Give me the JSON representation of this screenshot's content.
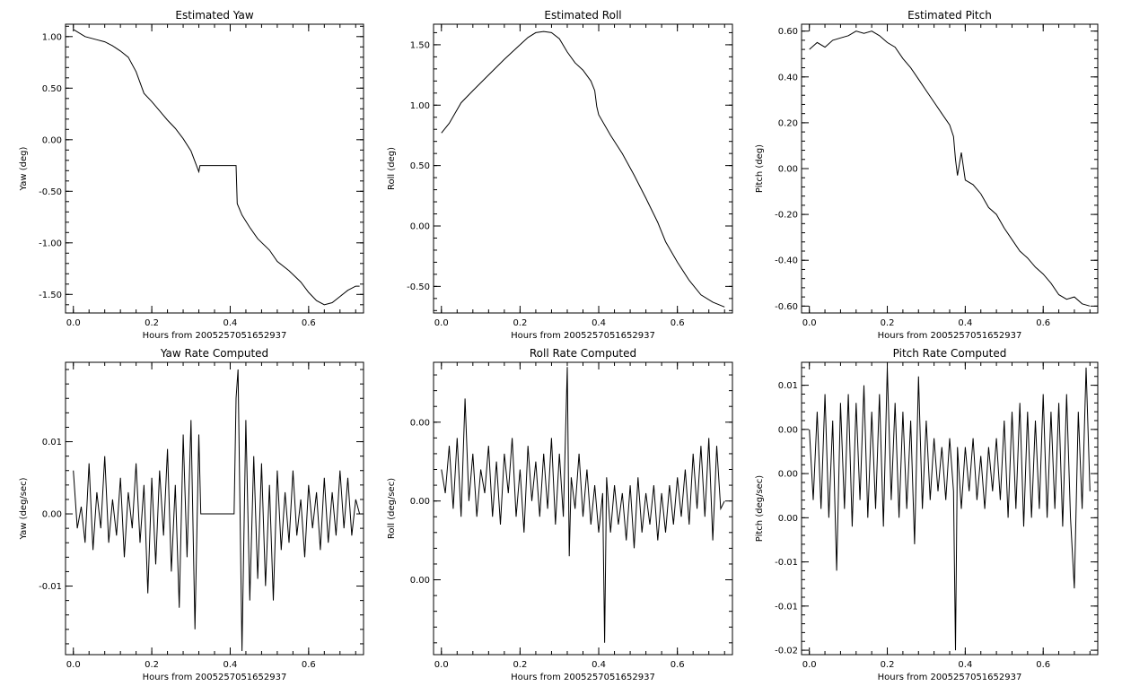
{
  "chart_data": [
    {
      "type": "line",
      "title": "Estimated Yaw",
      "xlabel": "Hours from 2005257051652937",
      "ylabel": "Yaw (deg)",
      "xlim": [
        -0.02,
        0.74
      ],
      "ylim": [
        -1.68,
        1.12
      ],
      "xticks": [
        "0.0",
        "0.2",
        "0.4",
        "0.6"
      ],
      "xtick_values": [
        0.0,
        0.2,
        0.4,
        0.6
      ],
      "yticks": [
        "1.00",
        "0.50",
        "0.00",
        "-0.50",
        "-1.00",
        "-1.50"
      ],
      "ytick_values": [
        1.0,
        0.5,
        0.0,
        -0.5,
        -1.0,
        -1.5
      ],
      "grid": false,
      "series": [
        {
          "x": [
            0.0,
            0.03,
            0.06,
            0.08,
            0.1,
            0.12,
            0.14,
            0.16,
            0.18,
            0.2,
            0.22,
            0.24,
            0.26,
            0.28,
            0.3,
            0.32,
            0.323,
            0.33,
            0.415,
            0.418,
            0.43,
            0.45,
            0.47,
            0.5,
            0.52,
            0.55,
            0.58,
            0.6,
            0.62,
            0.64,
            0.66,
            0.68,
            0.7,
            0.72,
            0.73
          ],
          "y": [
            1.07,
            1.0,
            0.97,
            0.95,
            0.91,
            0.86,
            0.8,
            0.66,
            0.45,
            0.37,
            0.28,
            0.19,
            0.11,
            0.01,
            -0.11,
            -0.31,
            -0.25,
            -0.25,
            -0.25,
            -0.62,
            -0.73,
            -0.85,
            -0.96,
            -1.07,
            -1.18,
            -1.27,
            -1.38,
            -1.48,
            -1.56,
            -1.6,
            -1.58,
            -1.52,
            -1.46,
            -1.42,
            -1.42
          ]
        }
      ]
    },
    {
      "type": "line",
      "title": "Estimated Roll",
      "xlabel": "Hours from 2005257051652937",
      "ylabel": "Roll (deg)",
      "xlim": [
        -0.02,
        0.74
      ],
      "ylim": [
        -0.72,
        1.67
      ],
      "xticks": [
        "0.0",
        "0.2",
        "0.4",
        "0.6"
      ],
      "xtick_values": [
        0.0,
        0.2,
        0.4,
        0.6
      ],
      "yticks": [
        "1.50",
        "1.00",
        "0.50",
        "0.00",
        "-0.50"
      ],
      "ytick_values": [
        1.5,
        1.0,
        0.5,
        0.0,
        -0.5
      ],
      "grid": false,
      "series": [
        {
          "x": [
            0.0,
            0.02,
            0.05,
            0.08,
            0.12,
            0.16,
            0.2,
            0.22,
            0.24,
            0.26,
            0.28,
            0.3,
            0.32,
            0.34,
            0.36,
            0.38,
            0.39,
            0.395,
            0.4,
            0.43,
            0.46,
            0.49,
            0.52,
            0.55,
            0.57,
            0.6,
            0.63,
            0.66,
            0.69,
            0.72
          ],
          "y": [
            0.77,
            0.85,
            1.02,
            1.12,
            1.25,
            1.38,
            1.5,
            1.56,
            1.6,
            1.61,
            1.6,
            1.55,
            1.44,
            1.35,
            1.29,
            1.2,
            1.12,
            0.99,
            0.92,
            0.75,
            0.6,
            0.42,
            0.23,
            0.03,
            -0.13,
            -0.3,
            -0.45,
            -0.57,
            -0.63,
            -0.67
          ]
        }
      ]
    },
    {
      "type": "line",
      "title": "Estimated Pitch",
      "xlabel": "Hours from 2005257051652937",
      "ylabel": "Pitch (deg)",
      "xlim": [
        -0.02,
        0.74
      ],
      "ylim": [
        -0.63,
        0.63
      ],
      "xticks": [
        "0.0",
        "0.2",
        "0.4",
        "0.6"
      ],
      "xtick_values": [
        0.0,
        0.2,
        0.4,
        0.6
      ],
      "yticks": [
        "0.60",
        "0.40",
        "0.20",
        "0.00",
        "-0.20",
        "-0.40",
        "-0.60"
      ],
      "ytick_values": [
        0.6,
        0.4,
        0.2,
        0.0,
        -0.2,
        -0.4,
        -0.6
      ],
      "grid": false,
      "series": [
        {
          "x": [
            0.0,
            0.02,
            0.04,
            0.06,
            0.08,
            0.1,
            0.12,
            0.14,
            0.16,
            0.18,
            0.2,
            0.22,
            0.24,
            0.26,
            0.28,
            0.3,
            0.32,
            0.34,
            0.36,
            0.37,
            0.375,
            0.38,
            0.39,
            0.4,
            0.42,
            0.44,
            0.46,
            0.48,
            0.5,
            0.52,
            0.54,
            0.56,
            0.58,
            0.6,
            0.62,
            0.64,
            0.66,
            0.68,
            0.7,
            0.72
          ],
          "y": [
            0.52,
            0.55,
            0.53,
            0.56,
            0.57,
            0.58,
            0.6,
            0.59,
            0.6,
            0.58,
            0.55,
            0.53,
            0.48,
            0.44,
            0.39,
            0.34,
            0.29,
            0.24,
            0.19,
            0.14,
            0.04,
            -0.03,
            0.07,
            -0.05,
            -0.07,
            -0.11,
            -0.17,
            -0.2,
            -0.26,
            -0.31,
            -0.36,
            -0.39,
            -0.43,
            -0.46,
            -0.5,
            -0.55,
            -0.57,
            -0.56,
            -0.59,
            -0.6
          ]
        }
      ]
    },
    {
      "type": "line",
      "title": "Yaw Rate Computed",
      "xlabel": "Hours from 2005257051652937",
      "ylabel": "Yaw (deg/sec)",
      "xlim": [
        -0.02,
        0.74
      ],
      "ylim": [
        -0.0195,
        0.021
      ],
      "xticks": [
        "0.0",
        "0.2",
        "0.4",
        "0.6"
      ],
      "xtick_values": [
        0.0,
        0.2,
        0.4,
        0.6
      ],
      "yticks": [
        "0.01",
        "0.00",
        "-0.01"
      ],
      "ytick_values": [
        0.01,
        0.0,
        -0.01
      ],
      "grid": false,
      "series": [
        {
          "x": [
            0.0,
            0.01,
            0.02,
            0.03,
            0.04,
            0.05,
            0.06,
            0.07,
            0.08,
            0.09,
            0.1,
            0.11,
            0.12,
            0.13,
            0.14,
            0.15,
            0.16,
            0.17,
            0.18,
            0.19,
            0.2,
            0.21,
            0.22,
            0.23,
            0.24,
            0.25,
            0.26,
            0.27,
            0.28,
            0.29,
            0.3,
            0.31,
            0.32,
            0.325,
            0.41,
            0.415,
            0.42,
            0.43,
            0.44,
            0.45,
            0.46,
            0.47,
            0.48,
            0.49,
            0.5,
            0.51,
            0.52,
            0.53,
            0.54,
            0.55,
            0.56,
            0.57,
            0.58,
            0.59,
            0.6,
            0.61,
            0.62,
            0.63,
            0.64,
            0.65,
            0.66,
            0.67,
            0.68,
            0.69,
            0.7,
            0.71,
            0.72,
            0.73
          ],
          "y": [
            0.006,
            -0.002,
            0.001,
            -0.004,
            0.007,
            -0.005,
            0.003,
            -0.002,
            0.008,
            -0.004,
            0.002,
            -0.003,
            0.005,
            -0.006,
            0.003,
            -0.002,
            0.007,
            -0.004,
            0.004,
            -0.011,
            0.005,
            -0.007,
            0.006,
            -0.003,
            0.009,
            -0.008,
            0.004,
            -0.013,
            0.011,
            -0.006,
            0.013,
            -0.016,
            0.011,
            0.0,
            0.0,
            0.016,
            0.02,
            -0.019,
            0.013,
            -0.012,
            0.008,
            -0.009,
            0.007,
            -0.01,
            0.004,
            -0.012,
            0.006,
            -0.005,
            0.003,
            -0.004,
            0.006,
            -0.003,
            0.002,
            -0.006,
            0.004,
            -0.002,
            0.003,
            -0.005,
            0.005,
            -0.004,
            0.003,
            -0.003,
            0.006,
            -0.002,
            0.005,
            -0.003,
            0.002,
            0.0
          ]
        }
      ]
    },
    {
      "type": "line",
      "title": "Roll Rate Computed",
      "xlabel": "Hours from 2005257051652937",
      "ylabel": "Roll (deg/sec)",
      "xlim": [
        -0.02,
        0.74
      ],
      "ylim": [
        -0.0195,
        0.0176
      ],
      "xticks": [
        "0.0",
        "0.2",
        "0.4",
        "0.6"
      ],
      "xtick_values": [
        0.0,
        0.2,
        0.4,
        0.6
      ],
      "yticks": [
        "0.00",
        "0.00",
        "0.00"
      ],
      "ytick_values": [
        0.01,
        0.0,
        -0.01
      ],
      "grid": false,
      "series": [
        {
          "x": [
            0.0,
            0.01,
            0.02,
            0.03,
            0.04,
            0.05,
            0.06,
            0.07,
            0.08,
            0.09,
            0.1,
            0.11,
            0.12,
            0.13,
            0.14,
            0.15,
            0.16,
            0.17,
            0.18,
            0.19,
            0.2,
            0.21,
            0.22,
            0.23,
            0.24,
            0.25,
            0.26,
            0.27,
            0.28,
            0.29,
            0.3,
            0.31,
            0.32,
            0.325,
            0.33,
            0.34,
            0.35,
            0.36,
            0.37,
            0.38,
            0.39,
            0.4,
            0.41,
            0.415,
            0.42,
            0.43,
            0.44,
            0.45,
            0.46,
            0.47,
            0.48,
            0.49,
            0.5,
            0.51,
            0.52,
            0.53,
            0.54,
            0.55,
            0.56,
            0.57,
            0.58,
            0.59,
            0.6,
            0.61,
            0.62,
            0.63,
            0.64,
            0.65,
            0.66,
            0.67,
            0.68,
            0.69,
            0.7,
            0.71,
            0.72
          ],
          "y": [
            0.004,
            0.001,
            0.007,
            -0.001,
            0.008,
            -0.002,
            0.013,
            0.0,
            0.006,
            -0.002,
            0.004,
            0.001,
            0.007,
            -0.002,
            0.005,
            -0.003,
            0.006,
            0.001,
            0.008,
            -0.002,
            0.004,
            -0.004,
            0.007,
            0.0,
            0.005,
            -0.002,
            0.006,
            -0.001,
            0.008,
            -0.003,
            0.006,
            -0.002,
            0.017,
            -0.007,
            0.003,
            -0.001,
            0.006,
            -0.002,
            0.004,
            -0.003,
            0.002,
            -0.004,
            0.001,
            -0.018,
            0.003,
            -0.004,
            0.002,
            -0.003,
            0.001,
            -0.005,
            0.002,
            -0.006,
            0.003,
            -0.004,
            0.001,
            -0.003,
            0.002,
            -0.005,
            0.001,
            -0.004,
            0.002,
            -0.003,
            0.003,
            -0.002,
            0.004,
            -0.003,
            0.006,
            -0.001,
            0.007,
            -0.002,
            0.008,
            -0.005,
            0.007,
            -0.001,
            0.0
          ]
        }
      ]
    },
    {
      "type": "line",
      "title": "Pitch Rate Computed",
      "xlabel": "Hours from 2005257051652937",
      "ylabel": "Pitch (deg/sec)",
      "xlim": [
        -0.02,
        0.74
      ],
      "ylim": [
        -0.0205,
        0.0126
      ],
      "xticks": [
        "0.0",
        "0.2",
        "0.4",
        "0.6"
      ],
      "xtick_values": [
        0.0,
        0.2,
        0.4,
        0.6
      ],
      "yticks": [
        "0.01",
        "0.00",
        "0.00",
        "0.00",
        "-0.01",
        "-0.01",
        "-0.02"
      ],
      "ytick_values": [
        0.01,
        0.005,
        0.0,
        -0.005,
        -0.01,
        -0.015,
        -0.02
      ],
      "grid": false,
      "series": [
        {
          "x": [
            0.0,
            0.01,
            0.02,
            0.03,
            0.04,
            0.05,
            0.06,
            0.07,
            0.08,
            0.09,
            0.1,
            0.11,
            0.12,
            0.13,
            0.14,
            0.15,
            0.16,
            0.17,
            0.18,
            0.19,
            0.2,
            0.21,
            0.22,
            0.23,
            0.24,
            0.25,
            0.26,
            0.27,
            0.28,
            0.29,
            0.3,
            0.31,
            0.32,
            0.33,
            0.34,
            0.35,
            0.36,
            0.37,
            0.375,
            0.38,
            0.39,
            0.4,
            0.41,
            0.42,
            0.43,
            0.44,
            0.45,
            0.46,
            0.47,
            0.48,
            0.49,
            0.5,
            0.51,
            0.52,
            0.53,
            0.54,
            0.55,
            0.56,
            0.57,
            0.58,
            0.59,
            0.6,
            0.61,
            0.62,
            0.63,
            0.64,
            0.65,
            0.66,
            0.67,
            0.68,
            0.69,
            0.7,
            0.71,
            0.72
          ],
          "y": [
            0.005,
            -0.003,
            0.007,
            -0.004,
            0.009,
            -0.005,
            0.006,
            -0.011,
            0.008,
            -0.004,
            0.009,
            -0.006,
            0.008,
            -0.003,
            0.01,
            -0.005,
            0.007,
            -0.004,
            0.009,
            -0.006,
            0.012,
            -0.003,
            0.008,
            -0.005,
            0.007,
            -0.004,
            0.006,
            -0.008,
            0.011,
            -0.004,
            0.006,
            -0.003,
            0.004,
            -0.002,
            0.003,
            -0.003,
            0.004,
            -0.002,
            -0.02,
            0.003,
            -0.004,
            0.003,
            -0.002,
            0.004,
            -0.003,
            0.002,
            -0.004,
            0.003,
            -0.002,
            0.004,
            -0.003,
            0.006,
            -0.005,
            0.007,
            -0.004,
            0.008,
            -0.006,
            0.007,
            -0.005,
            0.006,
            -0.004,
            0.009,
            -0.005,
            0.007,
            -0.004,
            0.008,
            -0.006,
            0.009,
            -0.005,
            -0.013,
            0.007,
            -0.004,
            0.012,
            -0.002
          ]
        }
      ]
    }
  ]
}
